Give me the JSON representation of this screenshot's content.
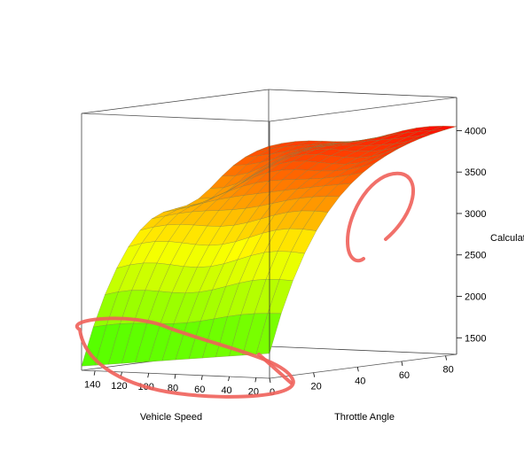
{
  "chart_data": {
    "type": "surface",
    "x_axis": {
      "label": "Vehicle Speed",
      "ticks": [
        20,
        40,
        60,
        80,
        100,
        120,
        140
      ],
      "range": [
        10,
        150
      ]
    },
    "y_axis": {
      "label": "Throttle Angle",
      "ticks": [
        0,
        20,
        40,
        60,
        80
      ],
      "range": [
        0,
        85
      ]
    },
    "z_axis": {
      "label": "Calculat",
      "ticks": [
        1500,
        2000,
        2500,
        3000,
        3500,
        4000
      ],
      "range": [
        1300,
        4400
      ]
    },
    "surface_corners": {
      "speed_low_throttle_low": 1600,
      "speed_high_throttle_low": 1350,
      "speed_low_throttle_high": 4050,
      "speed_high_throttle_high": 3700
    },
    "color_scale": {
      "low": "#33ff00",
      "mid": "#ffff00",
      "high": "#ff0000"
    },
    "grid_lines": "mesh",
    "annotations": [
      {
        "shape": "ellipse",
        "color": "#f0605a",
        "around": "low throttle edge"
      },
      {
        "shape": "arc",
        "color": "#f0605a",
        "around": "high speed, mid throttle dip"
      }
    ]
  }
}
